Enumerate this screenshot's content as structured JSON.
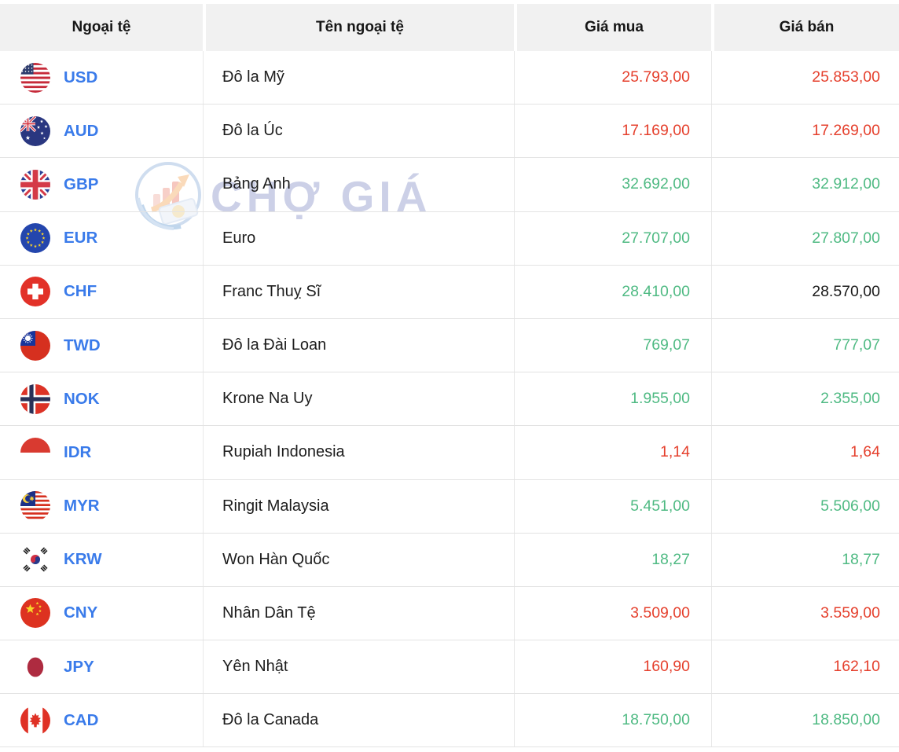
{
  "header": {
    "columns": [
      "Ngoại tệ",
      "Tên ngoại tệ",
      "Giá mua",
      "Giá bán"
    ]
  },
  "watermark": {
    "text": "CHỢ GIÁ",
    "logo": "cho-gia-logo-icon"
  },
  "colors": {
    "code_blue": "#3a7bea",
    "value_red": "#e5402d",
    "value_green": "#4fba83",
    "value_black": "#1b1b1b",
    "header_bg": "#f1f1f1",
    "watermark_text": "#c7cce5"
  },
  "rows": [
    {
      "code": "USD",
      "flag": "usd-flag-icon",
      "name": "Đô la Mỹ",
      "buy": "25.793,00",
      "sell": "25.853,00",
      "buy_color": "red",
      "sell_color": "red"
    },
    {
      "code": "AUD",
      "flag": "aud-flag-icon",
      "name": "Đô la Úc",
      "buy": "17.169,00",
      "sell": "17.269,00",
      "buy_color": "red",
      "sell_color": "red"
    },
    {
      "code": "GBP",
      "flag": "gbp-flag-icon",
      "name": "Bảng Anh",
      "buy": "32.692,00",
      "sell": "32.912,00",
      "buy_color": "green",
      "sell_color": "green"
    },
    {
      "code": "EUR",
      "flag": "eur-flag-icon",
      "name": "Euro",
      "buy": "27.707,00",
      "sell": "27.807,00",
      "buy_color": "green",
      "sell_color": "green"
    },
    {
      "code": "CHF",
      "flag": "chf-flag-icon",
      "name": "Franc Thuỵ Sĩ",
      "buy": "28.410,00",
      "sell": "28.570,00",
      "buy_color": "green",
      "sell_color": "black"
    },
    {
      "code": "TWD",
      "flag": "twd-flag-icon",
      "name": "Đô la Đài Loan",
      "buy": "769,07",
      "sell": "777,07",
      "buy_color": "green",
      "sell_color": "green"
    },
    {
      "code": "NOK",
      "flag": "nok-flag-icon",
      "name": "Krone Na Uy",
      "buy": "1.955,00",
      "sell": "2.355,00",
      "buy_color": "green",
      "sell_color": "green"
    },
    {
      "code": "IDR",
      "flag": "idr-flag-icon",
      "name": "Rupiah Indonesia",
      "buy": "1,14",
      "sell": "1,64",
      "buy_color": "red",
      "sell_color": "red"
    },
    {
      "code": "MYR",
      "flag": "myr-flag-icon",
      "name": "Ringit Malaysia",
      "buy": "5.451,00",
      "sell": "5.506,00",
      "buy_color": "green",
      "sell_color": "green"
    },
    {
      "code": "KRW",
      "flag": "krw-flag-icon",
      "name": "Won Hàn Quốc",
      "buy": "18,27",
      "sell": "18,77",
      "buy_color": "green",
      "sell_color": "green"
    },
    {
      "code": "CNY",
      "flag": "cny-flag-icon",
      "name": "Nhân Dân Tệ",
      "buy": "3.509,00",
      "sell": "3.559,00",
      "buy_color": "red",
      "sell_color": "red"
    },
    {
      "code": "JPY",
      "flag": "jpy-flag-icon",
      "name": "Yên Nhật",
      "buy": "160,90",
      "sell": "162,10",
      "buy_color": "red",
      "sell_color": "red"
    },
    {
      "code": "CAD",
      "flag": "cad-flag-icon",
      "name": "Đô la Canada",
      "buy": "18.750,00",
      "sell": "18.850,00",
      "buy_color": "green",
      "sell_color": "green"
    }
  ]
}
